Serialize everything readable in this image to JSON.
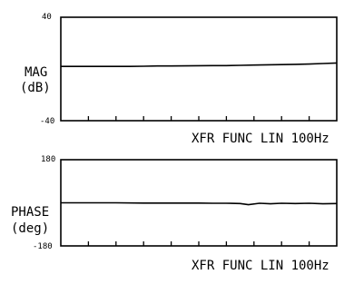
{
  "chart_data": [
    {
      "type": "line",
      "ylabel": [
        "MAG",
        "(dB)"
      ],
      "xlabel": "XFR FUNC LIN 100Hz",
      "ylim": [
        -40,
        40
      ],
      "ytick_labels": [
        "40",
        "-40"
      ],
      "xlim": [
        0,
        100
      ],
      "x_ticks": [
        10,
        20,
        30,
        40,
        50,
        60,
        70,
        80,
        90
      ],
      "grid": false,
      "series": [
        {
          "x": [
            0,
            5,
            10,
            15,
            20,
            25,
            30,
            35,
            40,
            45,
            50,
            55,
            60,
            65,
            70,
            75,
            80,
            85,
            90,
            95,
            100
          ],
          "y": [
            2,
            2,
            2,
            2,
            2,
            2,
            2.1,
            2.3,
            2.3,
            2.4,
            2.5,
            2.6,
            2.6,
            2.8,
            3,
            3.2,
            3.4,
            3.6,
            3.8,
            4.2,
            4.6
          ]
        }
      ]
    },
    {
      "type": "line",
      "ylabel": [
        "PHASE",
        "(deg)"
      ],
      "xlabel": "XFR FUNC LIN 100Hz",
      "ylim": [
        -180,
        180
      ],
      "ytick_labels": [
        "180",
        "-180"
      ],
      "xlim": [
        0,
        100
      ],
      "x_ticks": [
        10,
        20,
        30,
        40,
        50,
        60,
        70,
        80,
        90
      ],
      "grid": false,
      "series": [
        {
          "x": [
            0,
            10,
            20,
            30,
            40,
            50,
            55,
            60,
            65,
            68,
            72,
            76,
            80,
            85,
            90,
            95,
            100
          ],
          "y": [
            0,
            0,
            0,
            -1,
            -1,
            -1,
            -2,
            -2,
            -3,
            -8,
            -2,
            -4,
            -2,
            -3,
            -2,
            -4,
            -3
          ]
        }
      ]
    }
  ]
}
